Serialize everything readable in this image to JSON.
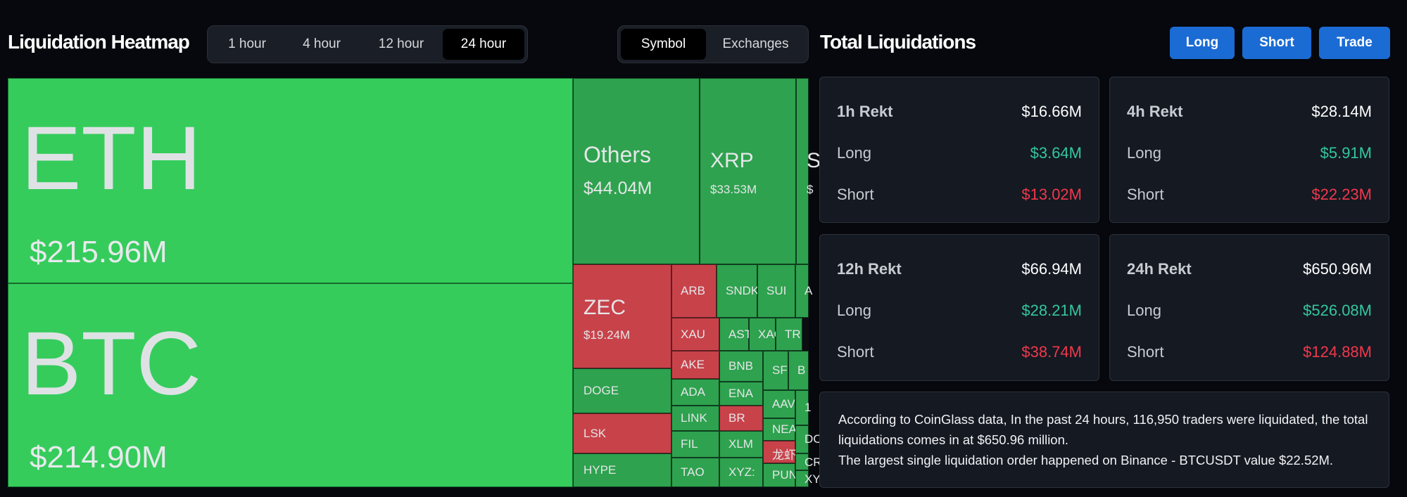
{
  "heatmap": {
    "title": "Liquidation Heatmap",
    "time_tabs": [
      "1 hour",
      "4 hour",
      "12 hour",
      "24 hour"
    ],
    "active_time_tab": "24 hour",
    "group_tabs": [
      "Symbol",
      "Exchanges"
    ],
    "active_group_tab": "Symbol",
    "tiles": [
      {
        "symbol": "ETH",
        "value": "$215.96M",
        "color": "#35cc5c"
      },
      {
        "symbol": "BTC",
        "value": "$214.90M",
        "color": "#35cc5c"
      },
      {
        "symbol": "Others",
        "value": "$44.04M",
        "color": "#2ea24e"
      },
      {
        "symbol": "XRP",
        "value": "$33.53M",
        "color": "#2ea24e"
      },
      {
        "symbol": "S",
        "value": "$",
        "color": "#2ea24e"
      },
      {
        "symbol": "ZEC",
        "value": "$19.24M",
        "color": "#c8424a"
      },
      {
        "symbol": "ARB",
        "color": "#c8424a"
      },
      {
        "symbol": "SNDK",
        "color": "#2ea24e"
      },
      {
        "symbol": "SUI",
        "color": "#2ea24e"
      },
      {
        "symbol": "A",
        "color": "#2ea24e"
      },
      {
        "symbol": "XAU",
        "color": "#c8424a"
      },
      {
        "symbol": "AST",
        "color": "#2ea24e"
      },
      {
        "symbol": "XAG",
        "color": "#2ea24e"
      },
      {
        "symbol": "TR",
        "color": "#2ea24e"
      },
      {
        "symbol": "AKE",
        "color": "#c8424a"
      },
      {
        "symbol": "BNB",
        "color": "#2ea24e"
      },
      {
        "symbol": "SF",
        "color": "#2ea24e"
      },
      {
        "symbol": "B",
        "color": "#2ea24e"
      },
      {
        "symbol": "DOGE",
        "color": "#2ea24e"
      },
      {
        "symbol": "ADA",
        "color": "#2ea24e"
      },
      {
        "symbol": "ENA",
        "color": "#2ea24e"
      },
      {
        "symbol": "AAV",
        "color": "#2ea24e"
      },
      {
        "symbol": "1",
        "color": "#2ea24e"
      },
      {
        "symbol": "LSK",
        "color": "#c8424a"
      },
      {
        "symbol": "LINK",
        "color": "#2ea24e"
      },
      {
        "symbol": "BR",
        "color": "#c8424a"
      },
      {
        "symbol": "NEA",
        "color": "#2ea24e"
      },
      {
        "symbol": "DC",
        "color": "#2ea24e"
      },
      {
        "symbol": "FIL",
        "color": "#2ea24e"
      },
      {
        "symbol": "XLM",
        "color": "#2ea24e"
      },
      {
        "symbol": "龙虾",
        "color": "#c8424a"
      },
      {
        "symbol": "CR",
        "color": "#2ea24e"
      },
      {
        "symbol": "HYPE",
        "color": "#2ea24e"
      },
      {
        "symbol": "TAO",
        "color": "#2ea24e"
      },
      {
        "symbol": "XYZ:",
        "color": "#2ea24e"
      },
      {
        "symbol": "PUN",
        "color": "#2ea24e"
      },
      {
        "symbol": "XY",
        "color": "#2ea24e"
      }
    ]
  },
  "total": {
    "title": "Total Liquidations",
    "buttons": [
      "Long",
      "Short",
      "Trade"
    ],
    "cards": [
      {
        "title": "1h Rekt",
        "total": "$16.66M",
        "long_label": "Long",
        "long": "$3.64M",
        "short_label": "Short",
        "short": "$13.02M"
      },
      {
        "title": "4h Rekt",
        "total": "$28.14M",
        "long_label": "Long",
        "long": "$5.91M",
        "short_label": "Short",
        "short": "$22.23M"
      },
      {
        "title": "12h Rekt",
        "total": "$66.94M",
        "long_label": "Long",
        "long": "$28.21M",
        "short_label": "Short",
        "short": "$38.74M"
      },
      {
        "title": "24h Rekt",
        "total": "$650.96M",
        "long_label": "Long",
        "long": "$526.08M",
        "short_label": "Short",
        "short": "$124.88M"
      }
    ],
    "info_line1": "According to CoinGlass data, In the past 24 hours, 116,950 traders were liquidated, the total liquidations comes in at $650.96 million.",
    "info_line2": "The largest single liquidation order happened on Binance - BTCUSDT value $22.52M."
  },
  "colors": {
    "long": "#34c79e",
    "short": "#f0384c",
    "accent": "#1b6bd4"
  }
}
